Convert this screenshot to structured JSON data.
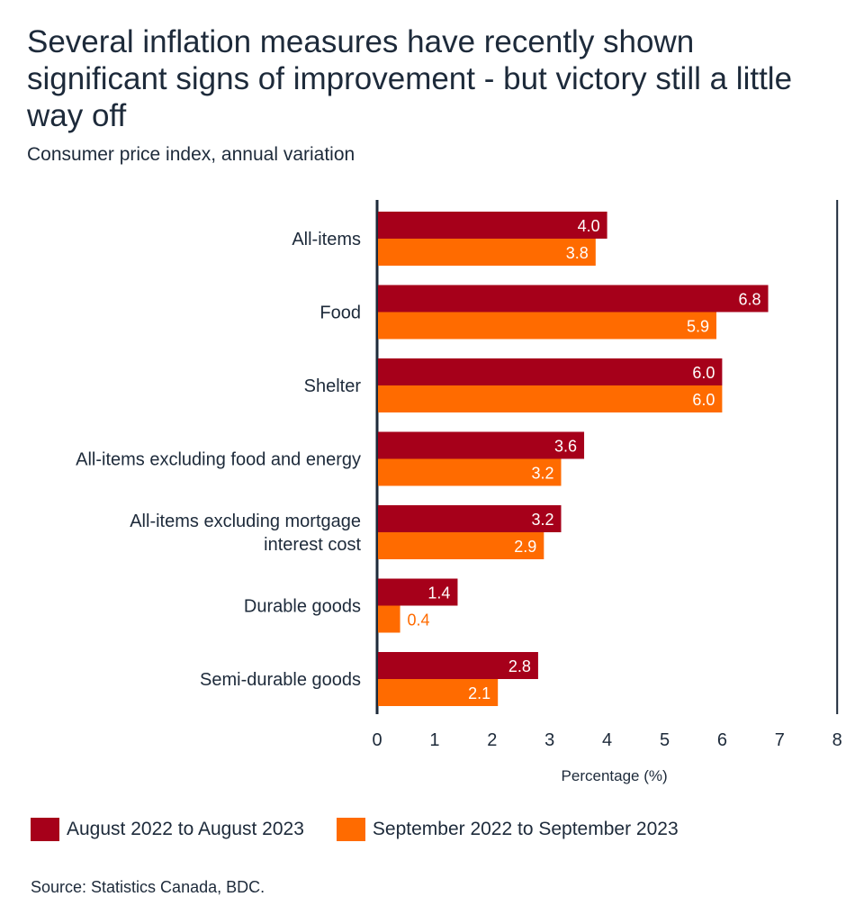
{
  "title": "Several inflation measures have recently shown significant signs of improvement - but victory still a little way off",
  "subtitle": "Consumer price index, annual variation",
  "source": "Source: Statistics Canada, BDC.",
  "colors": {
    "series1": "#a6001a",
    "series2": "#ff6b00",
    "axis": "#1d2a3a",
    "label_inside": "#ffffff"
  },
  "chart_data": {
    "type": "bar",
    "orientation": "horizontal",
    "categories": [
      "All-items",
      "Food",
      "Shelter",
      "All-items excluding food and energy",
      "All-items excluding mortgage interest cost",
      "Durable goods",
      "Semi-durable goods"
    ],
    "series": [
      {
        "name": "August 2022 to August 2023",
        "values": [
          4.0,
          6.8,
          6.0,
          3.6,
          3.2,
          1.4,
          2.8
        ],
        "labels": [
          "4.0",
          "6.8",
          "6.0",
          "3.6",
          "3.2",
          "1.4",
          "2.8"
        ]
      },
      {
        "name": "September 2022 to September 2023",
        "values": [
          3.8,
          5.9,
          6.0,
          3.2,
          2.9,
          0.4,
          2.1
        ],
        "labels": [
          "3.8",
          "5.9",
          "6.0",
          "3.2",
          "2.9",
          "0.4",
          "2.1"
        ]
      }
    ],
    "xlabel": "Percentage (%)",
    "ylabel": "",
    "xlim": [
      0,
      8
    ],
    "xticks": [
      "0",
      "1",
      "2",
      "3",
      "4",
      "5",
      "6",
      "7",
      "8"
    ],
    "grid": false,
    "legend_position": "bottom-left"
  }
}
